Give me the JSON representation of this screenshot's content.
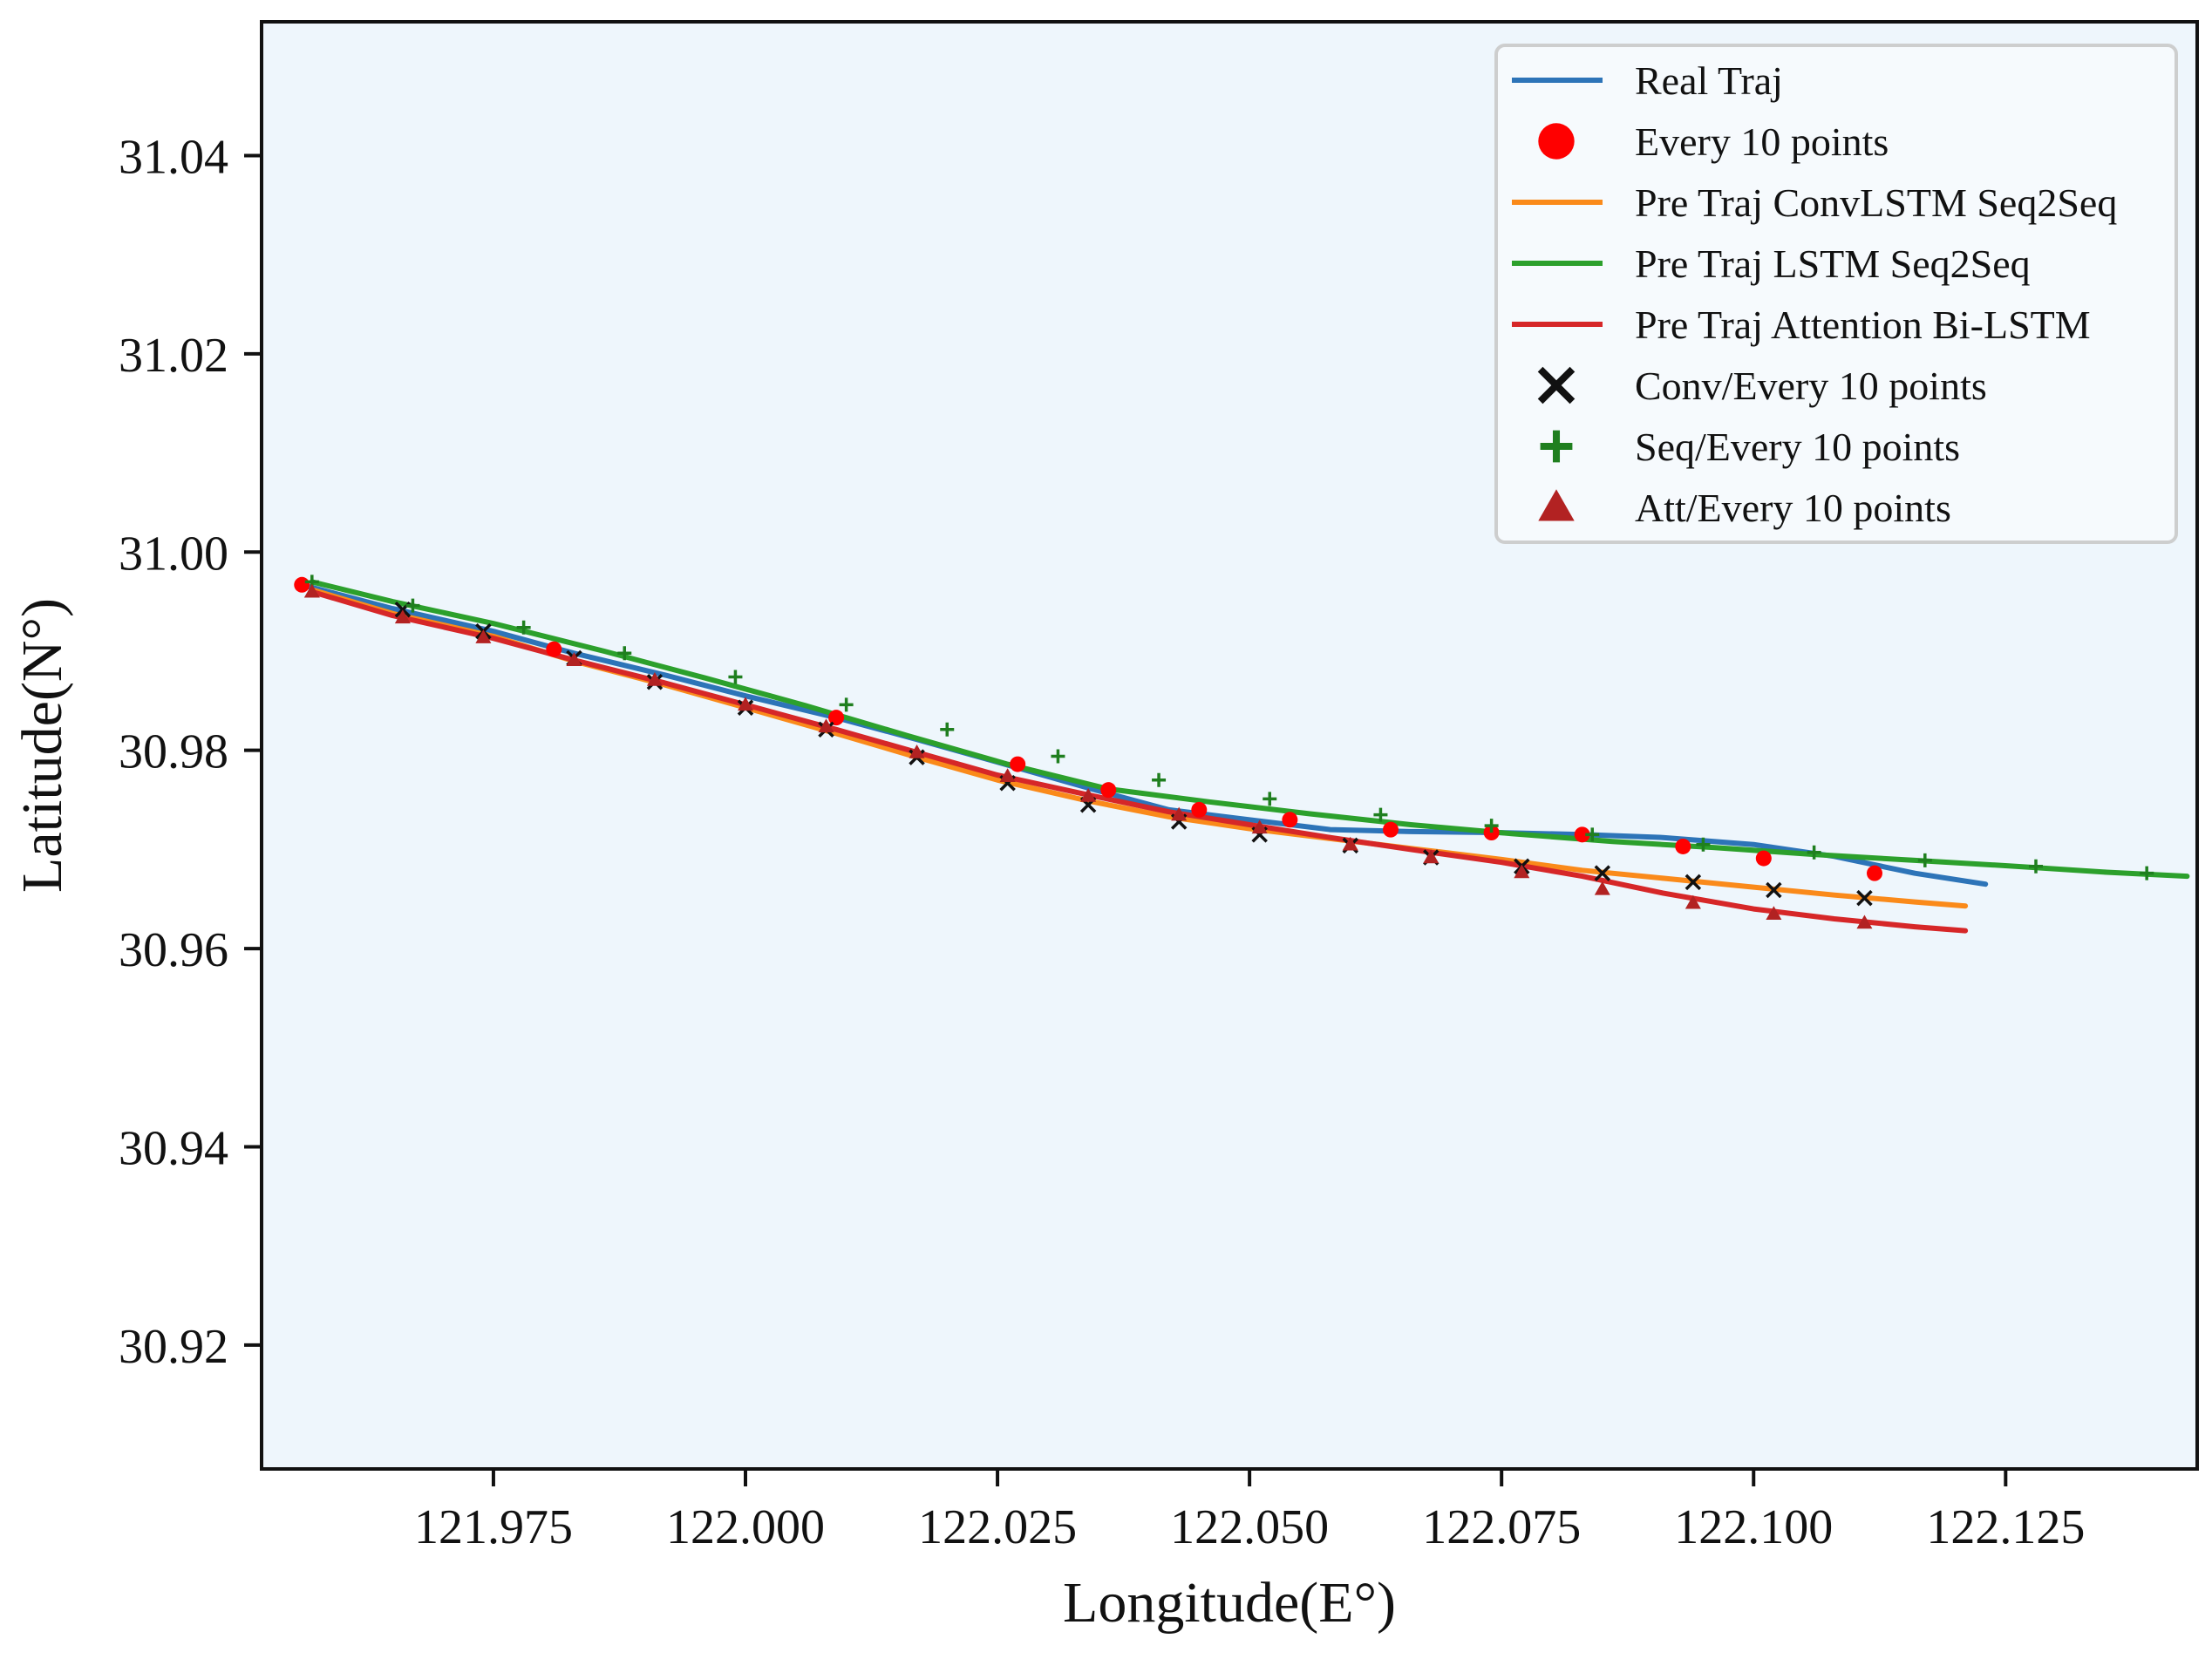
{
  "colors": {
    "plot_bg": "#eef6fc",
    "real": "#2d74b8",
    "conv": "#fa8a1a",
    "lstm": "#2ca02c",
    "att": "#d62728",
    "every10": "#ff0000",
    "conv_marker": "#111111",
    "seq_marker": "#1f7f1f",
    "att_marker": "#b22222"
  },
  "chart_data": {
    "type": "line",
    "title": "",
    "xlabel": "Longitude(E°)",
    "ylabel": "Latitude(N°)",
    "xlim": [
      121.952,
      122.144
    ],
    "ylim": [
      30.9075,
      31.0535
    ],
    "xticks": [
      121.975,
      122.0,
      122.025,
      122.05,
      122.075,
      122.1,
      122.125
    ],
    "xtick_labels": [
      "121.975",
      "122.000",
      "122.025",
      "122.050",
      "122.075",
      "122.100",
      "122.125"
    ],
    "yticks": [
      30.92,
      30.94,
      30.96,
      30.98,
      31.0,
      31.02,
      31.04
    ],
    "ytick_labels": [
      "30.92",
      "30.94",
      "30.96",
      "30.98",
      "31.00",
      "31.02",
      "31.04"
    ],
    "grid": false,
    "legend_position": "top-right",
    "series": [
      {
        "name": "Real Traj",
        "key": "real",
        "marker_name": "Every 10 points",
        "marker": "circle",
        "x": [
          121.956,
          121.965,
          121.975,
          121.983,
          121.992,
          122.0,
          122.009,
          122.017,
          122.025,
          122.034,
          122.042,
          122.05,
          122.058,
          122.066,
          122.075,
          122.083,
          122.091,
          122.1,
          122.108,
          122.116,
          122.123
        ],
        "y": [
          30.9967,
          30.9943,
          30.992,
          30.9898,
          30.9876,
          30.9855,
          30.9833,
          30.9811,
          30.9788,
          30.9762,
          30.974,
          30.973,
          30.972,
          30.9718,
          30.9717,
          30.9715,
          30.9712,
          30.9705,
          30.9693,
          30.9676,
          30.9665
        ],
        "marker_x": [
          121.956,
          121.981,
          122.009,
          122.027,
          122.036,
          122.045,
          122.054,
          122.064,
          122.074,
          122.083,
          122.093,
          122.101,
          122.112
        ],
        "marker_y": [
          30.9967,
          30.9902,
          30.9833,
          30.9786,
          30.976,
          30.974,
          30.973,
          30.972,
          30.9717,
          30.9715,
          30.9703,
          30.9691,
          30.9676
        ]
      },
      {
        "name": "Pre Traj ConvLSTM Seq2Seq",
        "key": "conv",
        "marker_name": "Conv/Every 10 points",
        "marker": "x",
        "x": [
          121.957,
          121.965,
          121.975,
          121.983,
          121.992,
          122.0,
          122.009,
          122.017,
          122.025,
          122.034,
          122.042,
          122.05,
          122.058,
          122.066,
          122.075,
          122.083,
          122.091,
          122.1,
          122.108,
          122.116,
          122.121
        ],
        "y": [
          30.9962,
          30.9938,
          30.9915,
          30.989,
          30.9866,
          30.9843,
          30.9817,
          30.9793,
          30.977,
          30.9749,
          30.9733,
          30.9721,
          30.9711,
          30.9701,
          30.969,
          30.9679,
          30.9671,
          30.9662,
          30.9654,
          30.9647,
          30.9643
        ],
        "marker_x": [
          121.966,
          121.974,
          121.983,
          121.991,
          122.0,
          122.008,
          122.017,
          122.026,
          122.034,
          122.043,
          122.051,
          122.06,
          122.068,
          122.077,
          122.085,
          122.094,
          122.102,
          122.111
        ],
        "marker_y": [
          30.9942,
          30.992,
          30.9893,
          30.9869,
          30.9843,
          30.9821,
          30.9793,
          30.9767,
          30.9745,
          30.9728,
          30.9715,
          30.9704,
          30.9692,
          30.9683,
          30.9676,
          30.9667,
          30.9659,
          30.9651
        ]
      },
      {
        "name": "Pre Traj LSTM Seq2Seq",
        "key": "lstm",
        "marker_name": "Seq/Every 10 points",
        "marker": "plus",
        "x": [
          121.957,
          121.965,
          121.975,
          121.986,
          121.996,
          122.006,
          122.016,
          122.026,
          122.036,
          122.046,
          122.056,
          122.066,
          122.076,
          122.086,
          122.096,
          122.106,
          122.116,
          122.126,
          122.135,
          122.143
        ],
        "y": [
          30.997,
          30.995,
          30.9928,
          30.99,
          30.9873,
          30.9845,
          30.9815,
          30.9786,
          30.9761,
          30.9748,
          30.9736,
          30.9725,
          30.9716,
          30.9708,
          30.9702,
          30.9695,
          30.9689,
          30.9683,
          30.9677,
          30.9673
        ],
        "marker_x": [
          121.957,
          121.967,
          121.978,
          121.988,
          121.999,
          122.01,
          122.02,
          122.031,
          122.041,
          122.052,
          122.063,
          122.074,
          122.084,
          122.095,
          122.106,
          122.117,
          122.128,
          122.139
        ],
        "marker_y": [
          30.997,
          30.9946,
          30.9924,
          30.9898,
          30.9874,
          30.9846,
          30.9821,
          30.9794,
          30.977,
          30.9751,
          30.9735,
          30.9724,
          30.9715,
          30.9705,
          30.9697,
          30.9689,
          30.9683,
          30.9676
        ]
      },
      {
        "name": "Pre Traj Attention Bi-LSTM",
        "key": "att",
        "marker_name": "Att/Every 10 points",
        "marker": "triangle",
        "x": [
          121.957,
          121.965,
          121.975,
          121.983,
          121.992,
          122.0,
          122.009,
          122.017,
          122.025,
          122.034,
          122.042,
          122.05,
          122.058,
          122.066,
          122.075,
          122.083,
          122.091,
          122.1,
          122.108,
          122.116,
          122.121
        ],
        "y": [
          30.996,
          30.9936,
          30.9913,
          30.9891,
          30.9868,
          30.9846,
          30.9821,
          30.9798,
          30.9775,
          30.9755,
          30.9738,
          30.9725,
          30.9712,
          30.97,
          30.9687,
          30.9673,
          30.9656,
          30.964,
          30.963,
          30.9622,
          30.9618
        ],
        "marker_x": [
          121.957,
          121.966,
          121.974,
          121.983,
          121.991,
          122.0,
          122.008,
          122.017,
          122.026,
          122.034,
          122.043,
          122.051,
          122.06,
          122.068,
          122.077,
          122.085,
          122.094,
          122.102,
          122.111
        ],
        "marker_y": [
          30.996,
          30.9934,
          30.9914,
          30.9891,
          30.9871,
          30.9846,
          30.9824,
          30.9798,
          30.9774,
          30.9754,
          30.9735,
          30.9722,
          30.9705,
          30.9692,
          30.9677,
          30.966,
          30.9646,
          30.9635,
          30.9626
        ]
      }
    ],
    "legend": [
      {
        "label": "Real Traj",
        "kind": "line",
        "key": "real"
      },
      {
        "label": "Every 10 points",
        "kind": "circle",
        "key": "every10"
      },
      {
        "label": "Pre Traj ConvLSTM Seq2Seq",
        "kind": "line",
        "key": "conv"
      },
      {
        "label": "Pre Traj LSTM Seq2Seq",
        "kind": "line",
        "key": "lstm"
      },
      {
        "label": "Pre Traj Attention Bi-LSTM",
        "kind": "line",
        "key": "att"
      },
      {
        "label": "Conv/Every 10 points",
        "kind": "x",
        "key": "conv_marker"
      },
      {
        "label": "Seq/Every 10 points",
        "kind": "plus",
        "key": "seq_marker"
      },
      {
        "label": "Att/Every 10 points",
        "kind": "triangle",
        "key": "att_marker"
      }
    ]
  }
}
